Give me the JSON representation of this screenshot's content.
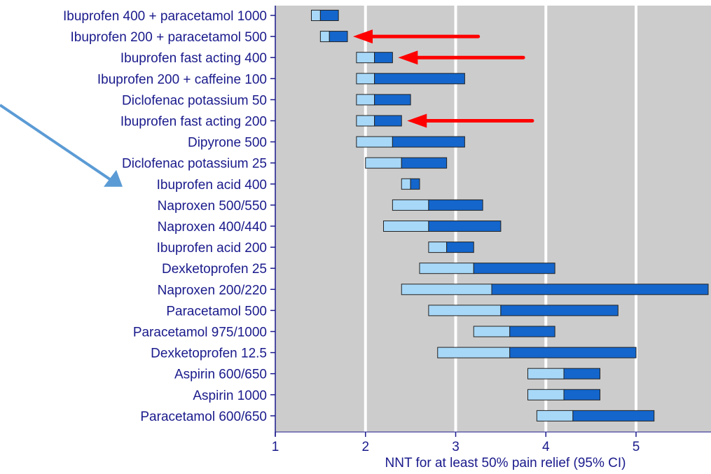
{
  "chart_data": {
    "type": "bar",
    "orientation": "horizontal",
    "xlabel": "NNT for at least 50% pain relief (95% CI)",
    "xlim": [
      1,
      5.8
    ],
    "xticks": [
      1,
      2,
      3,
      4,
      5
    ],
    "grid": true,
    "categories": [
      "Ibuprofen 400 + paracetamol 1000",
      "Ibuprofen 200 + paracetamol 500",
      "Ibuprofen fast acting 400",
      "Ibuprofen 200 + caffeine 100",
      "Diclofenac potassium 50",
      "Ibuprofen fast acting 200",
      "Dipyrone 500",
      "Diclofenac potassium 25",
      "Ibuprofen acid 400",
      "Naproxen 500/550",
      "Naproxen 400/440",
      "Ibuprofen acid 200",
      "Dexketoprofen 25",
      "Naproxen 200/220",
      "Paracetamol 500",
      "Paracetamol 975/1000",
      "Dexketoprofen 12.5",
      "Aspirin 600/650",
      "Aspirin 1000",
      "Paracetamol 600/650"
    ],
    "series": [
      {
        "values_low": [
          1.4,
          1.5,
          1.9,
          1.9,
          1.9,
          1.9,
          1.9,
          2.0,
          2.4,
          2.3,
          2.2,
          2.7,
          2.6,
          2.4,
          2.7,
          3.2,
          2.8,
          3.8,
          3.8,
          3.9
        ]
      },
      {
        "values_point": [
          1.5,
          1.6,
          2.1,
          2.1,
          2.1,
          2.1,
          2.3,
          2.4,
          2.5,
          2.7,
          2.7,
          2.9,
          3.2,
          3.4,
          3.5,
          3.6,
          3.6,
          4.2,
          4.2,
          4.3
        ]
      },
      {
        "values_high": [
          1.7,
          1.8,
          2.3,
          3.1,
          2.5,
          2.4,
          3.1,
          2.9,
          2.6,
          3.3,
          3.5,
          3.2,
          4.1,
          5.8,
          4.8,
          4.1,
          5.0,
          4.6,
          4.6,
          5.2
        ]
      }
    ],
    "colors": {
      "background": "#cccccc",
      "grid": "#ffffff",
      "lower_ci": "#a8d8f8",
      "upper_ci": "#1466cc",
      "text": "#1a1a8c",
      "red_arrow": "#ff0000",
      "blue_arrow": "#5b9bd5"
    },
    "annotations": {
      "red_arrows_rows": [
        1,
        2,
        5
      ],
      "blue_arrow_row": 8
    }
  }
}
